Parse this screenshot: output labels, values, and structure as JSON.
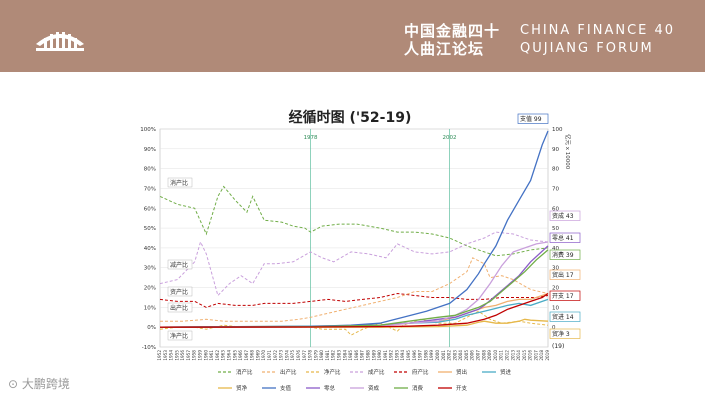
{
  "header": {
    "cn_title": "中国金融四十人曲江论坛",
    "en_title_line1": "CHINA FINANCE 40",
    "en_title_line2": "QUJIANG FORUM"
  },
  "watermark": "大鹏跨境",
  "chart_data": {
    "type": "line",
    "title": "经循时图 ('52-19)",
    "x_start": 1952,
    "x_end": 2019,
    "left_axis": {
      "range": [
        -10,
        100
      ],
      "ticks": [
        "-10%",
        "0%",
        "10%",
        "20%",
        "30%",
        "40%",
        "50%",
        "60%",
        "70%",
        "80%",
        "90%",
        "100%"
      ]
    },
    "right_axis": {
      "range": [
        -10,
        100
      ],
      "ticks": [
        "0",
        "10",
        "20",
        "30",
        "40",
        "50",
        "60",
        "70",
        "80",
        "90",
        "100"
      ],
      "unit": "亿元 x 10000"
    },
    "vlines": [
      {
        "label": "1978",
        "x": 1978
      },
      {
        "label": "2002",
        "x": 2002
      }
    ],
    "left_labels": [
      "消产比",
      "减产比",
      "资产比",
      "出产比",
      "净产比"
    ],
    "right_labels": [
      {
        "text": "支值 99",
        "color": "#4472c4"
      },
      {
        "text": "资成 43",
        "color": "#c9a0dc"
      },
      {
        "text": "零总 41",
        "color": "#8b5cc9"
      },
      {
        "text": "消费 39",
        "color": "#70ad47"
      },
      {
        "text": "贸出 17",
        "color": "#f0b070"
      },
      {
        "text": "开支 17",
        "color": "#c00000"
      },
      {
        "text": "贸进 14",
        "color": "#4bacc6"
      },
      {
        "text": "贸净 3",
        "color": "#e6b84a"
      },
      {
        "text": "(19)",
        "color": "#c00000"
      }
    ],
    "legend_row1": [
      {
        "name": "消产比",
        "color": "#70ad47",
        "dash": true
      },
      {
        "name": "出产比",
        "color": "#f0b070",
        "dash": true
      },
      {
        "name": "净产比",
        "color": "#e6b84a",
        "dash": true
      },
      {
        "name": "成产比",
        "color": "#c9a0dc",
        "dash": true
      },
      {
        "name": "府产比",
        "color": "#c00000",
        "dash": true
      },
      {
        "name": "贸出",
        "color": "#f0b070",
        "dash": false
      },
      {
        "name": "贸进",
        "color": "#4bacc6",
        "dash": false
      }
    ],
    "legend_row2": [
      {
        "name": "贸净",
        "color": "#e6b84a",
        "dash": false
      },
      {
        "name": "支值",
        "color": "#4472c4",
        "dash": false
      },
      {
        "name": "零总",
        "color": "#8b5cc9",
        "dash": false
      },
      {
        "name": "资成",
        "color": "#c9a0dc",
        "dash": false
      },
      {
        "name": "消费",
        "color": "#70ad47",
        "dash": false
      },
      {
        "name": "开支",
        "color": "#c00000",
        "dash": false
      }
    ],
    "series": [
      {
        "name": "消产比",
        "color": "#70ad47",
        "dash": true,
        "pts": [
          [
            1952,
            66
          ],
          [
            1955,
            62
          ],
          [
            1958,
            60
          ],
          [
            1960,
            47
          ],
          [
            1962,
            66
          ],
          [
            1963,
            71
          ],
          [
            1965,
            64
          ],
          [
            1967,
            58
          ],
          [
            1968,
            66
          ],
          [
            1970,
            54
          ],
          [
            1973,
            53
          ],
          [
            1975,
            51
          ],
          [
            1977,
            50
          ],
          [
            1978,
            48
          ],
          [
            1980,
            51
          ],
          [
            1983,
            52
          ],
          [
            1986,
            52
          ],
          [
            1990,
            50
          ],
          [
            1993,
            48
          ],
          [
            1996,
            48
          ],
          [
            1999,
            47
          ],
          [
            2002,
            45
          ],
          [
            2005,
            41
          ],
          [
            2008,
            38
          ],
          [
            2010,
            36
          ],
          [
            2013,
            37
          ],
          [
            2016,
            39
          ],
          [
            2019,
            40
          ]
        ]
      },
      {
        "name": "成产比",
        "color": "#c9a0dc",
        "dash": true,
        "pts": [
          [
            1952,
            22
          ],
          [
            1955,
            24
          ],
          [
            1958,
            33
          ],
          [
            1959,
            43
          ],
          [
            1960,
            37
          ],
          [
            1962,
            16
          ],
          [
            1964,
            22
          ],
          [
            1966,
            26
          ],
          [
            1968,
            22
          ],
          [
            1970,
            32
          ],
          [
            1972,
            32
          ],
          [
            1975,
            33
          ],
          [
            1978,
            38
          ],
          [
            1980,
            35
          ],
          [
            1982,
            33
          ],
          [
            1985,
            38
          ],
          [
            1988,
            37
          ],
          [
            1991,
            35
          ],
          [
            1993,
            42
          ],
          [
            1996,
            38
          ],
          [
            1999,
            37
          ],
          [
            2002,
            38
          ],
          [
            2005,
            42
          ],
          [
            2008,
            45
          ],
          [
            2010,
            48
          ],
          [
            2013,
            47
          ],
          [
            2016,
            44
          ],
          [
            2019,
            43
          ]
        ]
      },
      {
        "name": "府产比",
        "color": "#c00000",
        "dash": true,
        "pts": [
          [
            1952,
            14
          ],
          [
            1955,
            13
          ],
          [
            1958,
            13
          ],
          [
            1960,
            10
          ],
          [
            1962,
            12
          ],
          [
            1965,
            11
          ],
          [
            1968,
            11
          ],
          [
            1970,
            12
          ],
          [
            1973,
            12
          ],
          [
            1975,
            12
          ],
          [
            1978,
            13
          ],
          [
            1981,
            14
          ],
          [
            1984,
            13
          ],
          [
            1987,
            14
          ],
          [
            1990,
            15
          ],
          [
            1993,
            17
          ],
          [
            1996,
            16
          ],
          [
            1999,
            15
          ],
          [
            2002,
            15
          ],
          [
            2005,
            14
          ],
          [
            2008,
            14
          ],
          [
            2011,
            15
          ],
          [
            2014,
            15
          ],
          [
            2017,
            15
          ],
          [
            2019,
            16
          ]
        ]
      },
      {
        "name": "出产比",
        "color": "#f0b070",
        "dash": true,
        "pts": [
          [
            1952,
            3
          ],
          [
            1956,
            3
          ],
          [
            1960,
            4
          ],
          [
            1963,
            3
          ],
          [
            1966,
            3
          ],
          [
            1970,
            3
          ],
          [
            1973,
            3
          ],
          [
            1976,
            4
          ],
          [
            1978,
            5
          ],
          [
            1981,
            7
          ],
          [
            1984,
            9
          ],
          [
            1987,
            11
          ],
          [
            1990,
            13
          ],
          [
            1993,
            15
          ],
          [
            1996,
            18
          ],
          [
            1999,
            18
          ],
          [
            2002,
            22
          ],
          [
            2005,
            28
          ],
          [
            2006,
            35
          ],
          [
            2008,
            32
          ],
          [
            2009,
            25
          ],
          [
            2011,
            26
          ],
          [
            2013,
            24
          ],
          [
            2016,
            19
          ],
          [
            2019,
            17
          ]
        ]
      },
      {
        "name": "净产比",
        "color": "#e6b84a",
        "dash": true,
        "pts": [
          [
            1952,
            -1
          ],
          [
            1955,
            0
          ],
          [
            1958,
            0
          ],
          [
            1960,
            -1
          ],
          [
            1963,
            1
          ],
          [
            1966,
            0
          ],
          [
            1970,
            0
          ],
          [
            1973,
            0
          ],
          [
            1976,
            0
          ],
          [
            1978,
            0
          ],
          [
            1980,
            -1
          ],
          [
            1984,
            -1
          ],
          [
            1985,
            -4
          ],
          [
            1987,
            -1
          ],
          [
            1990,
            2
          ],
          [
            1993,
            -2
          ],
          [
            1994,
            1
          ],
          [
            1997,
            4
          ],
          [
            2000,
            2
          ],
          [
            2003,
            2
          ],
          [
            2005,
            5
          ],
          [
            2007,
            8
          ],
          [
            2009,
            4
          ],
          [
            2011,
            2
          ],
          [
            2014,
            3
          ],
          [
            2016,
            2
          ],
          [
            2019,
            1
          ]
        ]
      },
      {
        "name": "贸出",
        "color": "#f0b070",
        "dash": false,
        "pts": [
          [
            1952,
            0
          ],
          [
            1978,
            0.5
          ],
          [
            1990,
            1
          ],
          [
            1995,
            2
          ],
          [
            2000,
            3
          ],
          [
            2003,
            5
          ],
          [
            2005,
            7
          ],
          [
            2008,
            10
          ],
          [
            2010,
            11
          ],
          [
            2012,
            13
          ],
          [
            2014,
            14
          ],
          [
            2016,
            14
          ],
          [
            2019,
            17
          ]
        ]
      },
      {
        "name": "贸进",
        "color": "#4bacc6",
        "dash": false,
        "pts": [
          [
            1952,
            0
          ],
          [
            1978,
            0.5
          ],
          [
            1990,
            1
          ],
          [
            1995,
            2
          ],
          [
            2000,
            2.5
          ],
          [
            2003,
            4
          ],
          [
            2005,
            6
          ],
          [
            2008,
            8
          ],
          [
            2010,
            9.5
          ],
          [
            2012,
            11
          ],
          [
            2014,
            12
          ],
          [
            2016,
            11
          ],
          [
            2019,
            14
          ]
        ]
      },
      {
        "name": "贸净",
        "color": "#e6b84a",
        "dash": false,
        "pts": [
          [
            1952,
            0
          ],
          [
            1990,
            0
          ],
          [
            1995,
            0.2
          ],
          [
            2000,
            0.3
          ],
          [
            2005,
            1
          ],
          [
            2007,
            2.5
          ],
          [
            2008,
            3
          ],
          [
            2010,
            2
          ],
          [
            2012,
            2
          ],
          [
            2014,
            3
          ],
          [
            2015,
            4
          ],
          [
            2016,
            3.5
          ],
          [
            2019,
            3
          ]
        ]
      },
      {
        "name": "支值",
        "color": "#4472c4",
        "dash": false,
        "pts": [
          [
            1952,
            0
          ],
          [
            1970,
            0.3
          ],
          [
            1978,
            0.4
          ],
          [
            1985,
            1
          ],
          [
            1990,
            2
          ],
          [
            1994,
            5
          ],
          [
            1998,
            8
          ],
          [
            2002,
            12
          ],
          [
            2005,
            19
          ],
          [
            2007,
            27
          ],
          [
            2008,
            32
          ],
          [
            2010,
            41
          ],
          [
            2012,
            54
          ],
          [
            2014,
            64
          ],
          [
            2016,
            74
          ],
          [
            2018,
            92
          ],
          [
            2019,
            99
          ]
        ]
      },
      {
        "name": "零总",
        "color": "#8b5cc9",
        "dash": false,
        "pts": [
          [
            1952,
            0
          ],
          [
            1978,
            0.2
          ],
          [
            1990,
            1
          ],
          [
            1995,
            2
          ],
          [
            2000,
            4
          ],
          [
            2003,
            5
          ],
          [
            2005,
            7
          ],
          [
            2007,
            9
          ],
          [
            2008,
            11
          ],
          [
            2010,
            16
          ],
          [
            2012,
            21
          ],
          [
            2014,
            26
          ],
          [
            2016,
            33
          ],
          [
            2019,
            41
          ]
        ]
      },
      {
        "name": "资成",
        "color": "#c9a0dc",
        "dash": false,
        "pts": [
          [
            1952,
            0
          ],
          [
            1978,
            0.1
          ],
          [
            1990,
            0.5
          ],
          [
            1995,
            2
          ],
          [
            2000,
            3
          ],
          [
            2003,
            6
          ],
          [
            2005,
            9
          ],
          [
            2007,
            14
          ],
          [
            2009,
            22
          ],
          [
            2011,
            31
          ],
          [
            2013,
            38
          ],
          [
            2015,
            40
          ],
          [
            2017,
            42
          ],
          [
            2019,
            43
          ]
        ]
      },
      {
        "name": "消费",
        "color": "#70ad47",
        "dash": false,
        "pts": [
          [
            1952,
            0
          ],
          [
            1978,
            0.2
          ],
          [
            1990,
            1
          ],
          [
            1995,
            3
          ],
          [
            2000,
            5
          ],
          [
            2003,
            6
          ],
          [
            2005,
            8
          ],
          [
            2007,
            10
          ],
          [
            2009,
            13
          ],
          [
            2011,
            18
          ],
          [
            2013,
            23
          ],
          [
            2015,
            28
          ],
          [
            2017,
            34
          ],
          [
            2019,
            39
          ]
        ]
      },
      {
        "name": "开支",
        "color": "#c00000",
        "dash": false,
        "pts": [
          [
            1952,
            0
          ],
          [
            1978,
            0.1
          ],
          [
            1990,
            0.3
          ],
          [
            1995,
            0.5
          ],
          [
            2000,
            1
          ],
          [
            2005,
            2
          ],
          [
            2008,
            4
          ],
          [
            2010,
            6
          ],
          [
            2012,
            9
          ],
          [
            2014,
            11
          ],
          [
            2016,
            13
          ],
          [
            2018,
            15
          ],
          [
            2019,
            17
          ]
        ]
      }
    ]
  }
}
